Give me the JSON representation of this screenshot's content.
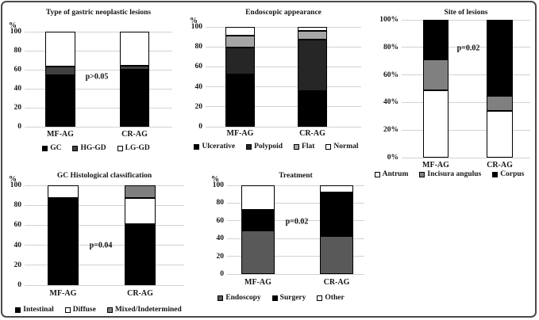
{
  "figure": {
    "background": "#ffffff",
    "border_color": "#4a4a4a",
    "gridline_color": "#d2d2d2",
    "bar_outline_color": "#000000"
  },
  "chart_data": [
    {
      "id": "type-of-gastric-neoplastic-lesions",
      "type": "bar",
      "stacked": true,
      "title": "Type of gastric neoplastic lesions",
      "unit_label": "%",
      "categories": [
        "MF-AG",
        "CR-AG"
      ],
      "y_ticks": [
        "0",
        "20",
        "40",
        "60",
        "80",
        "100"
      ],
      "ylim": [
        0,
        100
      ],
      "grid": true,
      "legend_position": "bottom",
      "annotation": "p>0.05",
      "series": [
        {
          "name": "GC",
          "color": "#000000",
          "values": [
            54,
            60
          ]
        },
        {
          "name": "HG-GD",
          "color": "#404040",
          "values": [
            9,
            4
          ]
        },
        {
          "name": "LG-GD",
          "color": "#ffffff",
          "values": [
            37,
            36
          ]
        }
      ]
    },
    {
      "id": "endoscopic-appearance",
      "type": "bar",
      "stacked": true,
      "title": "Endoscopic appearance",
      "unit_label": "%",
      "categories": [
        "MF-AG",
        "CR-AG"
      ],
      "y_ticks": [
        "0",
        "20",
        "40",
        "60",
        "80",
        "100"
      ],
      "ylim": [
        0,
        100
      ],
      "grid": true,
      "legend_position": "bottom",
      "series": [
        {
          "name": "Ulcerative",
          "color": "#000000",
          "values": [
            52,
            36
          ]
        },
        {
          "name": "Polypoid",
          "color": "#262626",
          "values": [
            27,
            51
          ]
        },
        {
          "name": "Flat",
          "color": "#a6a6a6",
          "values": [
            12,
            9
          ]
        },
        {
          "name": "Normal",
          "color": "#ffffff",
          "values": [
            9,
            4
          ]
        }
      ]
    },
    {
      "id": "site-of-lesions",
      "type": "bar",
      "stacked": true,
      "title": "Site of lesions",
      "unit_label": "",
      "categories": [
        "MF-AG",
        "CR-AG"
      ],
      "y_ticks": [
        "0%",
        "20%",
        "40%",
        "60%",
        "80%",
        "100%"
      ],
      "ylim": [
        0,
        100
      ],
      "grid": true,
      "legend_position": "bottom",
      "annotation": "p=0.02",
      "series": [
        {
          "name": "Antrum",
          "color": "#ffffff",
          "values": [
            49,
            34
          ]
        },
        {
          "name": "Incisura angulus",
          "color": "#808080",
          "values": [
            22,
            11
          ]
        },
        {
          "name": "Corpus",
          "color": "#000000",
          "values": [
            29,
            55
          ]
        }
      ]
    },
    {
      "id": "gc-histological-classification",
      "type": "bar",
      "stacked": true,
      "title": "GC Histological classification",
      "unit_label": "%",
      "categories": [
        "MF-AG",
        "CR-AG"
      ],
      "y_ticks": [
        "0",
        "20",
        "40",
        "60",
        "80",
        "100"
      ],
      "ylim": [
        0,
        100
      ],
      "grid": true,
      "legend_position": "bottom",
      "annotation": "p=0.04",
      "series": [
        {
          "name": "Intestinal",
          "color": "#000000",
          "values": [
            87,
            61
          ]
        },
        {
          "name": "Diffuse",
          "color": "#ffffff",
          "values": [
            13,
            26
          ]
        },
        {
          "name": "Mixed/Indetermined",
          "color": "#7f7f7f",
          "values": [
            0,
            13
          ]
        }
      ]
    },
    {
      "id": "treatment",
      "type": "bar",
      "stacked": true,
      "title": "Treatment",
      "unit_label": "%",
      "categories": [
        "MF-AG",
        "CR-AG"
      ],
      "y_ticks": [
        "0",
        "20",
        "40",
        "60",
        "80",
        "100"
      ],
      "ylim": [
        0,
        100
      ],
      "grid": true,
      "legend_position": "bottom",
      "annotation": "p=0.02",
      "series": [
        {
          "name": "Endoscopy",
          "color": "#595959",
          "values": [
            49,
            43
          ]
        },
        {
          "name": "Surgery",
          "color": "#000000",
          "values": [
            23,
            49
          ]
        },
        {
          "name": "Other",
          "color": "#ffffff",
          "values": [
            28,
            8
          ]
        }
      ]
    }
  ]
}
